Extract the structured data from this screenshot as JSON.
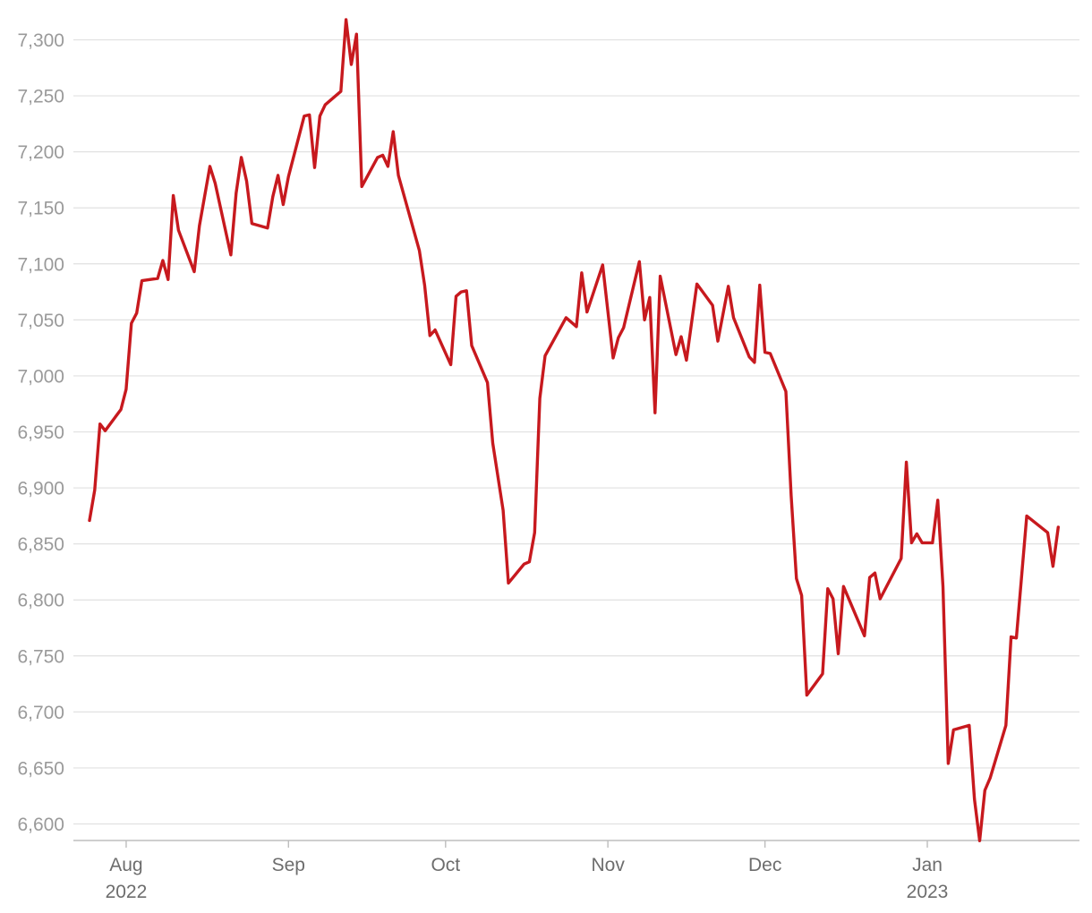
{
  "chart_data": {
    "type": "line",
    "title": "",
    "xlabel": "",
    "ylabel": "",
    "ylim": [
      6585,
      7320
    ],
    "y_ticks": [
      6600,
      6650,
      6700,
      6750,
      6800,
      6850,
      6900,
      6950,
      7000,
      7050,
      7100,
      7150,
      7200,
      7250,
      7300
    ],
    "y_tick_labels": [
      "6,600",
      "6,650",
      "6,700",
      "6,750",
      "6,800",
      "6,850",
      "6,900",
      "6,950",
      "7,000",
      "7,050",
      "7,100",
      "7,150",
      "7,200",
      "7,250",
      "7,300"
    ],
    "x_range": [
      "2022-07-25",
      "2023-01-24"
    ],
    "x_ticks": [
      {
        "date": "2022-08-01",
        "label": "Aug",
        "sublabel": "2022"
      },
      {
        "date": "2022-09-01",
        "label": "Sep",
        "sublabel": ""
      },
      {
        "date": "2022-10-01",
        "label": "Oct",
        "sublabel": ""
      },
      {
        "date": "2022-11-01",
        "label": "Nov",
        "sublabel": ""
      },
      {
        "date": "2022-12-01",
        "label": "Dec",
        "sublabel": ""
      },
      {
        "date": "2023-01-01",
        "label": "Jan",
        "sublabel": "2023"
      }
    ],
    "grid": true,
    "series": [
      {
        "color": "#c7191e",
        "points": [
          [
            "2022-07-25",
            6871
          ],
          [
            "2022-07-26",
            6898
          ],
          [
            "2022-07-27",
            6957
          ],
          [
            "2022-07-28",
            6951
          ],
          [
            "2022-07-31",
            6970
          ],
          [
            "2022-08-01",
            6988
          ],
          [
            "2022-08-02",
            7047
          ],
          [
            "2022-08-03",
            7056
          ],
          [
            "2022-08-04",
            7085
          ],
          [
            "2022-08-07",
            7087
          ],
          [
            "2022-08-08",
            7103
          ],
          [
            "2022-08-09",
            7086
          ],
          [
            "2022-08-10",
            7161
          ],
          [
            "2022-08-11",
            7130
          ],
          [
            "2022-08-14",
            7093
          ],
          [
            "2022-08-15",
            7134
          ],
          [
            "2022-08-17",
            7187
          ],
          [
            "2022-08-18",
            7172
          ],
          [
            "2022-08-21",
            7108
          ],
          [
            "2022-08-22",
            7163
          ],
          [
            "2022-08-23",
            7195
          ],
          [
            "2022-08-24",
            7174
          ],
          [
            "2022-08-25",
            7136
          ],
          [
            "2022-08-28",
            7132
          ],
          [
            "2022-08-29",
            7160
          ],
          [
            "2022-08-30",
            7179
          ],
          [
            "2022-08-31",
            7153
          ],
          [
            "2022-09-01",
            7178
          ],
          [
            "2022-09-04",
            7232
          ],
          [
            "2022-09-05",
            7233
          ],
          [
            "2022-09-06",
            7186
          ],
          [
            "2022-09-07",
            7232
          ],
          [
            "2022-09-08",
            7242
          ],
          [
            "2022-09-11",
            7254
          ],
          [
            "2022-09-12",
            7318
          ],
          [
            "2022-09-13",
            7278
          ],
          [
            "2022-09-14",
            7305
          ],
          [
            "2022-09-15",
            7169
          ],
          [
            "2022-09-18",
            7195
          ],
          [
            "2022-09-19",
            7197
          ],
          [
            "2022-09-20",
            7187
          ],
          [
            "2022-09-21",
            7218
          ],
          [
            "2022-09-22",
            7179
          ],
          [
            "2022-09-26",
            7112
          ],
          [
            "2022-09-27",
            7081
          ],
          [
            "2022-09-28",
            7036
          ],
          [
            "2022-09-29",
            7041
          ],
          [
            "2022-10-02",
            7010
          ],
          [
            "2022-10-03",
            7071
          ],
          [
            "2022-10-04",
            7075
          ],
          [
            "2022-10-05",
            7076
          ],
          [
            "2022-10-06",
            7027
          ],
          [
            "2022-10-09",
            6994
          ],
          [
            "2022-10-10",
            6940
          ],
          [
            "2022-10-12",
            6880
          ],
          [
            "2022-10-13",
            6815
          ],
          [
            "2022-10-16",
            6832
          ],
          [
            "2022-10-17",
            6834
          ],
          [
            "2022-10-18",
            6860
          ],
          [
            "2022-10-19",
            6980
          ],
          [
            "2022-10-20",
            7018
          ],
          [
            "2022-10-24",
            7052
          ],
          [
            "2022-10-26",
            7044
          ],
          [
            "2022-10-27",
            7092
          ],
          [
            "2022-10-28",
            7057
          ],
          [
            "2022-10-31",
            7099
          ],
          [
            "2022-11-02",
            7016
          ],
          [
            "2022-11-03",
            7034
          ],
          [
            "2022-11-04",
            7043
          ],
          [
            "2022-11-07",
            7102
          ],
          [
            "2022-11-08",
            7050
          ],
          [
            "2022-11-09",
            7070
          ],
          [
            "2022-11-10",
            6967
          ],
          [
            "2022-11-11",
            7089
          ],
          [
            "2022-11-14",
            7019
          ],
          [
            "2022-11-15",
            7035
          ],
          [
            "2022-11-16",
            7014
          ],
          [
            "2022-11-18",
            7082
          ],
          [
            "2022-11-21",
            7063
          ],
          [
            "2022-11-22",
            7031
          ],
          [
            "2022-11-24",
            7080
          ],
          [
            "2022-11-25",
            7052
          ],
          [
            "2022-11-28",
            7017
          ],
          [
            "2022-11-29",
            7012
          ],
          [
            "2022-11-30",
            7081
          ],
          [
            "2022-12-01",
            7021
          ],
          [
            "2022-12-02",
            7020
          ],
          [
            "2022-12-05",
            6986
          ],
          [
            "2022-12-06",
            6893
          ],
          [
            "2022-12-07",
            6819
          ],
          [
            "2022-12-08",
            6804
          ],
          [
            "2022-12-09",
            6715
          ],
          [
            "2022-12-12",
            6734
          ],
          [
            "2022-12-13",
            6810
          ],
          [
            "2022-12-14",
            6801
          ],
          [
            "2022-12-15",
            6752
          ],
          [
            "2022-12-16",
            6812
          ],
          [
            "2022-12-20",
            6768
          ],
          [
            "2022-12-21",
            6820
          ],
          [
            "2022-12-22",
            6824
          ],
          [
            "2022-12-23",
            6801
          ],
          [
            "2022-12-27",
            6837
          ],
          [
            "2022-12-28",
            6923
          ],
          [
            "2022-12-29",
            6851
          ],
          [
            "2022-12-30",
            6859
          ],
          [
            "2022-12-31",
            6851
          ],
          [
            "2023-01-02",
            6851
          ],
          [
            "2023-01-03",
            6889
          ],
          [
            "2023-01-04",
            6812
          ],
          [
            "2023-01-05",
            6654
          ],
          [
            "2023-01-06",
            6684
          ],
          [
            "2023-01-09",
            6688
          ],
          [
            "2023-01-10",
            6622
          ],
          [
            "2023-01-11",
            6585
          ],
          [
            "2023-01-12",
            6630
          ],
          [
            "2023-01-13",
            6641
          ],
          [
            "2023-01-16",
            6688
          ],
          [
            "2023-01-17",
            6767
          ],
          [
            "2023-01-18",
            6766
          ],
          [
            "2023-01-20",
            6875
          ],
          [
            "2023-01-24",
            6860
          ],
          [
            "2023-01-25",
            6830
          ],
          [
            "2023-01-26",
            6865
          ]
        ]
      }
    ]
  }
}
